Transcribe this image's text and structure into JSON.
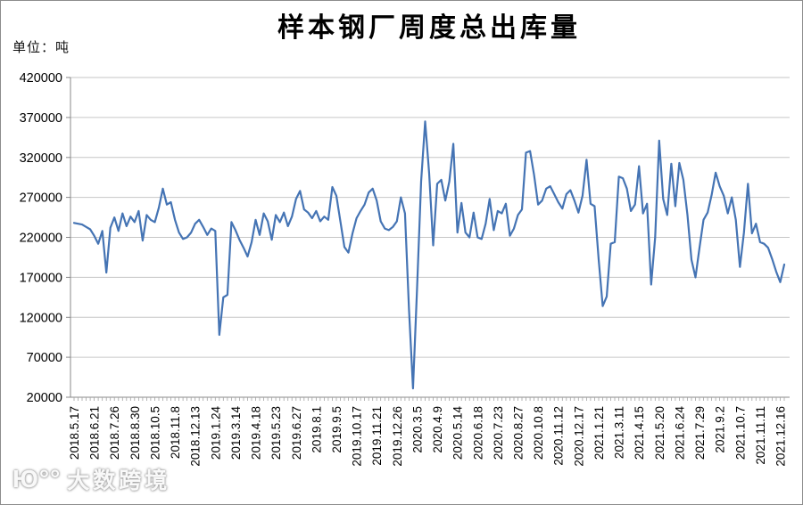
{
  "watermark": {
    "logo_glyph": "Ю°°",
    "text": "大数跨境"
  },
  "chart_data": {
    "type": "line",
    "title": "样本钢厂周度总出库量",
    "unit_label": "单位：吨",
    "ylim": [
      20000,
      420000
    ],
    "y_ticks": [
      420000,
      370000,
      320000,
      270000,
      220000,
      170000,
      120000,
      70000,
      20000
    ],
    "grid": true,
    "legend": "none",
    "line_color": "#4574b4",
    "grid_color": "#c6c6c6",
    "axis_color": "#8a8a8a",
    "minor_tick_color": "#a3a3a3",
    "label_every": 5,
    "x_tick_labels": [
      "2018.5.17",
      "2018.6.21",
      "2018.7.26",
      "2018.8.30",
      "2018.10.5",
      "2018.11.8",
      "2018.12.13",
      "2019.1.24",
      "2019.3.14",
      "2019.4.18",
      "2019.5.23",
      "2019.6.27",
      "2019.8.1",
      "2019.9.5",
      "2019.10.17",
      "2019.11.21",
      "2019.12.26",
      "2020.3.5",
      "2020.4.9",
      "2020.5.14",
      "2020.6.18",
      "2020.7.23",
      "2020.8.27",
      "2020.10.8",
      "2020.11.12",
      "2020.12.17",
      "2021.1.21",
      "2021.3.11",
      "2021.4.15",
      "2021.5.20",
      "2021.6.24",
      "2021.7.29",
      "2021.9.2",
      "2021.10.7",
      "2021.11.11",
      "2021.12.16"
    ],
    "values": [
      238000,
      237000,
      236000,
      233000,
      230000,
      222000,
      212000,
      228000,
      176000,
      232000,
      245000,
      228000,
      250000,
      234000,
      246000,
      239000,
      253000,
      216000,
      248000,
      242000,
      239000,
      257000,
      281000,
      261000,
      264000,
      242000,
      226000,
      218000,
      220000,
      226000,
      237000,
      242000,
      233000,
      223000,
      231000,
      228000,
      98000,
      145000,
      148000,
      239000,
      229000,
      217000,
      207000,
      196000,
      214000,
      242000,
      223000,
      250000,
      240000,
      217000,
      248000,
      239000,
      251000,
      234000,
      246000,
      268000,
      278000,
      255000,
      251000,
      244000,
      253000,
      240000,
      246000,
      242000,
      283000,
      272000,
      240000,
      208000,
      201000,
      225000,
      244000,
      253000,
      261000,
      276000,
      281000,
      266000,
      240000,
      231000,
      229000,
      233000,
      240000,
      270000,
      250000,
      130000,
      31000,
      155000,
      290000,
      365000,
      300000,
      210000,
      287000,
      292000,
      266000,
      290000,
      337000,
      226000,
      263000,
      226000,
      220000,
      251000,
      220000,
      218000,
      237000,
      268000,
      229000,
      253000,
      250000,
      262000,
      222000,
      231000,
      248000,
      255000,
      326000,
      328000,
      298000,
      261000,
      266000,
      281000,
      284000,
      274000,
      264000,
      256000,
      274000,
      279000,
      266000,
      251000,
      272000,
      317000,
      262000,
      259000,
      192000,
      134000,
      146000,
      212000,
      214000,
      296000,
      294000,
      281000,
      253000,
      261000,
      309000,
      250000,
      262000,
      161000,
      220000,
      341000,
      268000,
      248000,
      312000,
      259000,
      313000,
      292000,
      248000,
      192000,
      170000,
      207000,
      242000,
      251000,
      273000,
      301000,
      284000,
      272000,
      250000,
      270000,
      242000,
      183000,
      226000,
      287000,
      225000,
      237000,
      214000,
      212000,
      207000,
      193000,
      177000,
      164000,
      186000
    ]
  }
}
